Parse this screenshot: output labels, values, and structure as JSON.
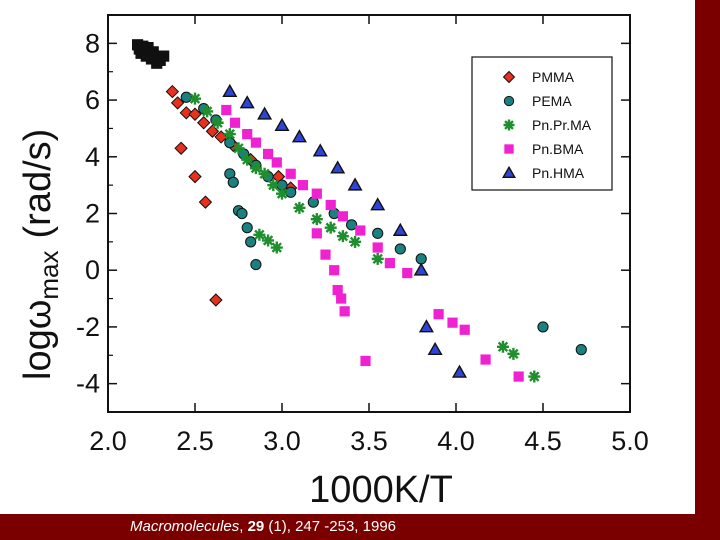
{
  "chart_data": {
    "type": "scatter",
    "xlabel": "1000K/T",
    "ylabel_main": "log",
    "ylabel_omega": "ω",
    "ylabel_sub": "max",
    "ylabel_unit": "(rad/s)",
    "xlim": [
      2.0,
      5.0
    ],
    "ylim": [
      -5,
      9
    ],
    "xticks": [
      2.0,
      2.5,
      3.0,
      3.5,
      4.0,
      4.5,
      5.0
    ],
    "xtick_labels": [
      "2.0",
      "2.5",
      "3.0",
      "3.5",
      "4.0",
      "4.5",
      "5.0"
    ],
    "yticks": [
      -4,
      -2,
      0,
      2,
      4,
      6,
      8
    ],
    "ytick_labels": [
      "-4",
      "-2",
      "0",
      "2",
      "4",
      "6",
      "8"
    ],
    "grid": false,
    "legend_position": "top-right",
    "series": [
      {
        "name": "PMMA",
        "marker": "diamond",
        "color": "#e8311c",
        "points": [
          [
            2.37,
            6.3
          ],
          [
            2.4,
            5.9
          ],
          [
            2.45,
            5.55
          ],
          [
            2.5,
            5.5
          ],
          [
            2.55,
            5.2
          ],
          [
            2.6,
            4.9
          ],
          [
            2.65,
            4.7
          ],
          [
            2.42,
            4.3
          ],
          [
            2.5,
            3.3
          ],
          [
            2.56,
            2.4
          ],
          [
            2.62,
            -1.05
          ],
          [
            2.72,
            4.4
          ],
          [
            2.82,
            3.9
          ],
          [
            2.98,
            3.3
          ],
          [
            3.05,
            2.9
          ]
        ]
      },
      {
        "name": "PEMA",
        "marker": "circle",
        "color": "#1a8080",
        "points": [
          [
            2.45,
            6.1
          ],
          [
            2.55,
            5.7
          ],
          [
            2.62,
            5.3
          ],
          [
            2.7,
            4.5
          ],
          [
            2.78,
            4.1
          ],
          [
            2.85,
            3.7
          ],
          [
            2.92,
            3.3
          ],
          [
            3.0,
            3.0
          ],
          [
            2.7,
            3.4
          ],
          [
            2.72,
            3.1
          ],
          [
            2.75,
            2.1
          ],
          [
            2.77,
            2.0
          ],
          [
            2.8,
            1.5
          ],
          [
            2.82,
            1.0
          ],
          [
            2.85,
            0.2
          ],
          [
            3.05,
            2.75
          ],
          [
            3.18,
            2.4
          ],
          [
            3.3,
            2.0
          ],
          [
            3.4,
            1.6
          ],
          [
            3.55,
            1.3
          ],
          [
            3.68,
            0.75
          ],
          [
            3.8,
            0.4
          ],
          [
            4.5,
            -2.0
          ],
          [
            4.72,
            -2.8
          ]
        ]
      },
      {
        "name": "Pn.Pr.MA",
        "marker": "star",
        "color": "#1f8f2e",
        "points": [
          [
            2.5,
            6.05
          ],
          [
            2.57,
            5.6
          ],
          [
            2.63,
            5.2
          ],
          [
            2.7,
            4.8
          ],
          [
            2.75,
            4.3
          ],
          [
            2.8,
            3.9
          ],
          [
            2.85,
            3.6
          ],
          [
            2.9,
            3.4
          ],
          [
            2.95,
            3.0
          ],
          [
            3.0,
            2.7
          ],
          [
            3.1,
            2.2
          ],
          [
            3.2,
            1.8
          ],
          [
            3.28,
            1.5
          ],
          [
            3.35,
            1.2
          ],
          [
            3.42,
            1.0
          ],
          [
            3.55,
            0.4
          ],
          [
            2.87,
            1.25
          ],
          [
            2.92,
            1.05
          ],
          [
            2.97,
            0.8
          ],
          [
            4.27,
            -2.7
          ],
          [
            4.33,
            -2.95
          ],
          [
            4.45,
            -3.75
          ]
        ]
      },
      {
        "name": "Pn.BMA",
        "marker": "square",
        "color": "#ee22d0",
        "points": [
          [
            2.68,
            5.65
          ],
          [
            2.73,
            5.2
          ],
          [
            2.8,
            4.8
          ],
          [
            2.85,
            4.5
          ],
          [
            2.92,
            4.1
          ],
          [
            2.97,
            3.8
          ],
          [
            3.05,
            3.4
          ],
          [
            3.12,
            3.0
          ],
          [
            3.2,
            2.7
          ],
          [
            3.28,
            2.3
          ],
          [
            3.35,
            1.9
          ],
          [
            3.45,
            1.4
          ],
          [
            3.55,
            0.8
          ],
          [
            3.62,
            0.25
          ],
          [
            3.72,
            -0.1
          ],
          [
            3.2,
            1.3
          ],
          [
            3.25,
            0.55
          ],
          [
            3.3,
            0.0
          ],
          [
            3.32,
            -0.7
          ],
          [
            3.34,
            -1.0
          ],
          [
            3.36,
            -1.45
          ],
          [
            3.48,
            -3.2
          ],
          [
            3.9,
            -1.55
          ],
          [
            3.98,
            -1.85
          ],
          [
            4.05,
            -2.1
          ],
          [
            4.17,
            -3.15
          ],
          [
            4.36,
            -3.75
          ]
        ]
      },
      {
        "name": "Pn.HMA",
        "marker": "triangle",
        "color": "#2f44d6",
        "points": [
          [
            2.7,
            6.3
          ],
          [
            2.8,
            5.9
          ],
          [
            2.9,
            5.5
          ],
          [
            3.0,
            5.1
          ],
          [
            3.1,
            4.7
          ],
          [
            3.22,
            4.2
          ],
          [
            3.32,
            3.6
          ],
          [
            3.42,
            3.0
          ],
          [
            3.55,
            2.3
          ],
          [
            3.68,
            1.4
          ],
          [
            3.8,
            0.0
          ],
          [
            3.83,
            -2.0
          ],
          [
            3.88,
            -2.8
          ],
          [
            4.02,
            -3.6
          ]
        ]
      },
      {
        "name": "PMMA-cluster",
        "marker": "square",
        "color": "#111111",
        "points": [
          [
            2.17,
            7.95
          ],
          [
            2.18,
            7.8
          ],
          [
            2.19,
            7.65
          ],
          [
            2.2,
            7.9
          ],
          [
            2.21,
            7.75
          ],
          [
            2.22,
            7.55
          ],
          [
            2.23,
            7.85
          ],
          [
            2.24,
            7.6
          ],
          [
            2.25,
            7.45
          ],
          [
            2.26,
            7.7
          ],
          [
            2.27,
            7.5
          ],
          [
            2.28,
            7.3
          ],
          [
            2.29,
            7.55
          ],
          [
            2.3,
            7.4
          ],
          [
            2.32,
            7.55
          ]
        ]
      }
    ],
    "legend": [
      "PMMA",
      "PEMA",
      "Pn.Pr.MA",
      "Pn.BMA",
      "Pn.HMA"
    ]
  },
  "legend_labels": {
    "PMMA": "PMMA",
    "PEMA": "PEMA",
    "Pn.Pr.MA": "Pn.Pr.MA",
    "Pn.BMA": "Pn.BMA",
    "Pn.HMA": "Pn.HMA"
  },
  "citation": {
    "journal": "Macromolecules",
    "sep": ", ",
    "volume": "29",
    "rest": " (1), 247 -253, 1996"
  },
  "colors": {
    "frame": "#7a0000",
    "background": "#ffffff"
  }
}
